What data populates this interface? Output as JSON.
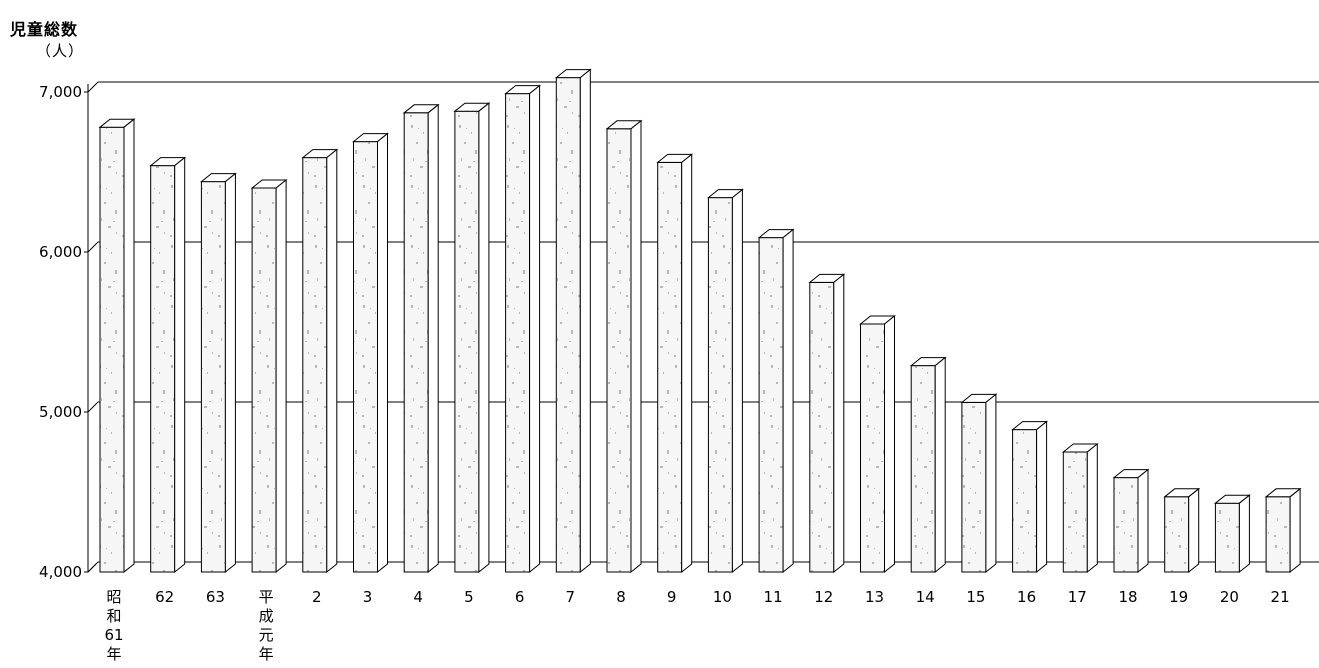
{
  "chart_data": {
    "type": "bar",
    "ylabel": "児童総数",
    "yunit": "（人）",
    "ylim": [
      4000,
      7000
    ],
    "yticks": [
      "4,000",
      "5,000",
      "6,000",
      "7,000"
    ],
    "ytick_values": [
      4000,
      5000,
      6000,
      7000
    ],
    "grid": true,
    "categories": [
      "昭和61年",
      "62",
      "63",
      "平成元年",
      "2",
      "3",
      "4",
      "5",
      "6",
      "7",
      "8",
      "9",
      "10",
      "11",
      "12",
      "13",
      "14",
      "15",
      "16",
      "17",
      "18",
      "19",
      "20",
      "21"
    ],
    "vertical_categories": [
      "昭和61年",
      "平成元年"
    ],
    "values": [
      6780,
      6540,
      6440,
      6400,
      6590,
      6690,
      6870,
      6880,
      6990,
      7090,
      6770,
      6560,
      6340,
      6090,
      5810,
      5550,
      5290,
      5060,
      4890,
      4750,
      4590,
      4470,
      4430,
      4470
    ],
    "colors": {
      "bar_fill": "#f6f6f6",
      "bar_top": "#ffffff",
      "bar_side": "#ffffff",
      "bar_stroke": "#000000",
      "grid": "#000000",
      "speckle": "#b8b8b8"
    }
  }
}
